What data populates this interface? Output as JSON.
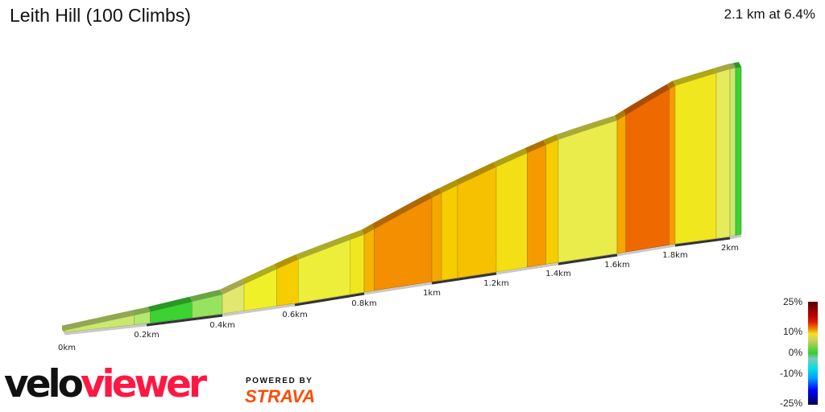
{
  "header": {
    "title": "Leith Hill (100 Climbs)",
    "summary": "2.1 km at 6.4%"
  },
  "chart_data": {
    "type": "area",
    "title": "Leith Hill (100 Climbs)",
    "xlabel": "",
    "ylabel": "",
    "x_ticks": [
      "0km",
      "0.2km",
      "0.4km",
      "0.6km",
      "0.8km",
      "1km",
      "1.2km",
      "1.4km",
      "1.6km",
      "1.8km",
      "2km"
    ],
    "x_tick_values": [
      0,
      0.2,
      0.4,
      0.6,
      0.8,
      1.0,
      1.2,
      1.4,
      1.6,
      1.8,
      2.0
    ],
    "xlim": [
      0,
      2.1
    ],
    "profile": [
      [
        0,
        1
      ],
      [
        0.2,
        6
      ],
      [
        0.4,
        11
      ],
      [
        0.6,
        25
      ],
      [
        0.8,
        35
      ],
      [
        1.0,
        53
      ],
      [
        1.2,
        69
      ],
      [
        1.4,
        84
      ],
      [
        1.6,
        95
      ],
      [
        1.8,
        118
      ],
      [
        2.0,
        131
      ],
      [
        2.1,
        134
      ]
    ],
    "segments": [
      {
        "from": 0,
        "to": 0.17,
        "gradient": 3
      },
      {
        "from": 0.17,
        "to": 0.21,
        "gradient": 2
      },
      {
        "from": 0.21,
        "to": 0.32,
        "gradient": 0
      },
      {
        "from": 0.32,
        "to": 0.4,
        "gradient": 1.5
      },
      {
        "from": 0.4,
        "to": 0.46,
        "gradient": 4
      },
      {
        "from": 0.46,
        "to": 0.55,
        "gradient": 6
      },
      {
        "from": 0.55,
        "to": 0.61,
        "gradient": 8
      },
      {
        "from": 0.61,
        "to": 0.76,
        "gradient": 5.5
      },
      {
        "from": 0.76,
        "to": 0.8,
        "gradient": 6.5
      },
      {
        "from": 0.8,
        "to": 0.83,
        "gradient": 9
      },
      {
        "from": 0.83,
        "to": 1.0,
        "gradient": 10.5
      },
      {
        "from": 1.0,
        "to": 1.03,
        "gradient": 9.5
      },
      {
        "from": 1.03,
        "to": 1.08,
        "gradient": 8
      },
      {
        "from": 1.08,
        "to": 1.2,
        "gradient": 8.5
      },
      {
        "from": 1.2,
        "to": 1.3,
        "gradient": 7
      },
      {
        "from": 1.3,
        "to": 1.36,
        "gradient": 10
      },
      {
        "from": 1.36,
        "to": 1.4,
        "gradient": 8
      },
      {
        "from": 1.4,
        "to": 1.6,
        "gradient": 5
      },
      {
        "from": 1.6,
        "to": 1.63,
        "gradient": 9.5
      },
      {
        "from": 1.63,
        "to": 1.78,
        "gradient": 12
      },
      {
        "from": 1.78,
        "to": 1.8,
        "gradient": 10
      },
      {
        "from": 1.8,
        "to": 1.95,
        "gradient": 6.5
      },
      {
        "from": 1.95,
        "to": 2.0,
        "gradient": 4.5
      },
      {
        "from": 2.0,
        "to": 2.05,
        "gradient": 3
      },
      {
        "from": 2.05,
        "to": 2.1,
        "gradient": 0
      }
    ],
    "legend": {
      "title": "",
      "labels": [
        "25%",
        "10%",
        "0%",
        "-10%",
        "-25%"
      ]
    },
    "grid": false
  },
  "branding": {
    "logo_velo": "velo",
    "logo_viewer": "viewer",
    "powered_by": "POWERED BY",
    "strava": "STRAVA"
  },
  "colors": {
    "veloviewer_red": "#ff1744",
    "strava_orange": "#fc4c02"
  }
}
